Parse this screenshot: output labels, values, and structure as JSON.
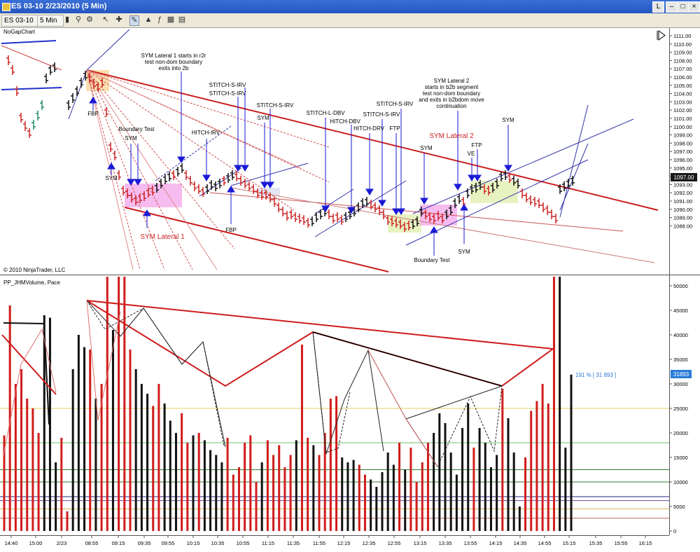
{
  "window": {
    "title": "ES 03-10  2/23/2010 (5 Min)",
    "buttons": [
      "L",
      "–",
      "□",
      "×"
    ]
  },
  "toolbar": {
    "instrument": "ES 03-10",
    "interval": "5 Min"
  },
  "price_panel": {
    "indicator_label": "NoGapChart",
    "copyright": "© 2010 NinjaTrader, LLC",
    "y_ticks": [
      "1111.00",
      "1110.00",
      "1109.00",
      "1108.00",
      "1107.00",
      "1106.00",
      "1105.00",
      "1104.00",
      "1103.00",
      "1102.00",
      "1101.00",
      "1100.00",
      "1099.00",
      "1098.00",
      "1097.00",
      "1096.00",
      "1095.00",
      "1094.00",
      "1093.00",
      "1092.00",
      "1091.00",
      "1090.00",
      "1089.00",
      "1088.00"
    ],
    "last_price": "1097.00",
    "annotations": [
      {
        "text": "SYM Lateral 1 starts in r2r",
        "color": "#000"
      },
      {
        "text": "test non-dom boundary",
        "color": "#000"
      },
      {
        "text": "exits into 2b",
        "color": "#000"
      },
      {
        "text": "FBP",
        "color": "#000"
      },
      {
        "text": "Boundary Test",
        "color": "#000"
      },
      {
        "text": "SYM",
        "color": "#000"
      },
      {
        "text": "SYM",
        "color": "#000"
      },
      {
        "text": "HITCH-IRV",
        "color": "#000"
      },
      {
        "text": "STITCH-S-IRV",
        "color": "#000"
      },
      {
        "text": "STITCH-S-IRV",
        "color": "#000"
      },
      {
        "text": "STITCH-S-IRV",
        "color": "#000"
      },
      {
        "text": "SYM",
        "color": "#000"
      },
      {
        "text": "FBP",
        "color": "#000"
      },
      {
        "text": "SYM Lateral 1",
        "color": "#cc2222"
      },
      {
        "text": "STITCH-L-DBV",
        "color": "#000"
      },
      {
        "text": "HITCH-DBV",
        "color": "#000"
      },
      {
        "text": "HITCH-DRV",
        "color": "#000"
      },
      {
        "text": "STITCH-S-IRV",
        "color": "#000"
      },
      {
        "text": "STITCH-S-IRV",
        "color": "#000"
      },
      {
        "text": "FTP",
        "color": "#000"
      },
      {
        "text": "SYM Lateral 2",
        "color": "#000"
      },
      {
        "text": "starts in b2b segment",
        "color": "#000"
      },
      {
        "text": "test non-dom boundary",
        "color": "#000"
      },
      {
        "text": "and exits in b2bdom move",
        "color": "#000"
      },
      {
        "text": "continuation",
        "color": "#000"
      },
      {
        "text": "SYM Lateral 2",
        "color": "#cc2222"
      },
      {
        "text": "SYM",
        "color": "#000"
      },
      {
        "text": "VE",
        "color": "#000"
      },
      {
        "text": "FTP",
        "color": "#000"
      },
      {
        "text": "SYM",
        "color": "#000"
      },
      {
        "text": "SYM",
        "color": "#000"
      },
      {
        "text": "Boundary Test",
        "color": "#000"
      }
    ]
  },
  "volume_panel": {
    "indicator_label": "PP_JHMVolume, Pace",
    "y_ticks": [
      "50000",
      "45000",
      "40000",
      "35000",
      "30000",
      "25000",
      "20000",
      "15000",
      "10000",
      "5000",
      "0"
    ],
    "pace_text": "191 % [ 31 893 ]",
    "last_value": "31893"
  },
  "x_ticks": [
    "14:40",
    "15:00",
    "2/23",
    "08:55",
    "09:15",
    "09:35",
    "09:55",
    "10:15",
    "10:35",
    "10:55",
    "11:15",
    "11:35",
    "11:55",
    "12:15",
    "12:35",
    "12:55",
    "13:15",
    "13:35",
    "13:55",
    "14:15",
    "14:35",
    "14:55",
    "15:15",
    "15:35",
    "15:55",
    "16:15"
  ],
  "chart_data": {
    "type": "bar",
    "price_range": [
      1087.5,
      1111.5
    ],
    "volume_range": [
      0,
      52000
    ],
    "volume_series": {
      "name": "PP_JHMVolume",
      "values": [
        {
          "v": 19500,
          "c": "red"
        },
        {
          "v": 46000,
          "c": "red"
        },
        {
          "v": 30000,
          "c": "red"
        },
        {
          "v": 33000,
          "c": "red"
        },
        {
          "v": 27000,
          "c": "red"
        },
        {
          "v": 25000,
          "c": "red"
        },
        {
          "v": 20000,
          "c": "red"
        },
        {
          "v": 44000,
          "c": "black"
        },
        {
          "v": 43500,
          "c": "black"
        },
        {
          "v": 14000,
          "c": "black"
        },
        {
          "v": 19000,
          "c": "red"
        },
        {
          "v": 4000,
          "c": "red"
        },
        {
          "v": 33000,
          "c": "black"
        },
        {
          "v": 40000,
          "c": "black"
        },
        {
          "v": 37500,
          "c": "black"
        },
        {
          "v": 37000,
          "c": "red"
        },
        {
          "v": 27000,
          "c": "black"
        },
        {
          "v": 30000,
          "c": "red"
        },
        {
          "v": 52000,
          "c": "red"
        },
        {
          "v": 41000,
          "c": "black"
        },
        {
          "v": 52000,
          "c": "red"
        },
        {
          "v": 52000,
          "c": "red"
        },
        {
          "v": 37000,
          "c": "red"
        },
        {
          "v": 33000,
          "c": "black"
        },
        {
          "v": 30000,
          "c": "black"
        },
        {
          "v": 28000,
          "c": "black"
        },
        {
          "v": 25500,
          "c": "red"
        },
        {
          "v": 30000,
          "c": "red"
        },
        {
          "v": 26000,
          "c": "black"
        },
        {
          "v": 22500,
          "c": "black"
        },
        {
          "v": 20000,
          "c": "black"
        },
        {
          "v": 24000,
          "c": "red"
        },
        {
          "v": 18000,
          "c": "red"
        },
        {
          "v": 19500,
          "c": "black"
        },
        {
          "v": 20000,
          "c": "red"
        },
        {
          "v": 18500,
          "c": "black"
        },
        {
          "v": 16500,
          "c": "black"
        },
        {
          "v": 15500,
          "c": "black"
        },
        {
          "v": 14000,
          "c": "black"
        },
        {
          "v": 19000,
          "c": "red"
        },
        {
          "v": 11500,
          "c": "red"
        },
        {
          "v": 13000,
          "c": "red"
        },
        {
          "v": 18000,
          "c": "red"
        },
        {
          "v": 19500,
          "c": "red"
        },
        {
          "v": 10000,
          "c": "red"
        },
        {
          "v": 14000,
          "c": "black"
        },
        {
          "v": 18500,
          "c": "red"
        },
        {
          "v": 15500,
          "c": "red"
        },
        {
          "v": 17500,
          "c": "red"
        },
        {
          "v": 13000,
          "c": "red"
        },
        {
          "v": 15500,
          "c": "red"
        },
        {
          "v": 18500,
          "c": "black"
        },
        {
          "v": 38000,
          "c": "red"
        },
        {
          "v": 19000,
          "c": "red"
        },
        {
          "v": 17500,
          "c": "black"
        },
        {
          "v": 15500,
          "c": "red"
        },
        {
          "v": 20000,
          "c": "red"
        },
        {
          "v": 27000,
          "c": "red"
        },
        {
          "v": 27500,
          "c": "red"
        },
        {
          "v": 15000,
          "c": "black"
        },
        {
          "v": 14000,
          "c": "black"
        },
        {
          "v": 14500,
          "c": "black"
        },
        {
          "v": 13500,
          "c": "red"
        },
        {
          "v": 11500,
          "c": "red"
        },
        {
          "v": 10500,
          "c": "black"
        },
        {
          "v": 9000,
          "c": "black"
        },
        {
          "v": 12000,
          "c": "black"
        },
        {
          "v": 16000,
          "c": "black"
        },
        {
          "v": 13500,
          "c": "black"
        },
        {
          "v": 18000,
          "c": "red"
        },
        {
          "v": 12500,
          "c": "black"
        },
        {
          "v": 17000,
          "c": "red"
        },
        {
          "v": 10000,
          "c": "red"
        },
        {
          "v": 14000,
          "c": "red"
        },
        {
          "v": 18000,
          "c": "red"
        },
        {
          "v": 20000,
          "c": "black"
        },
        {
          "v": 24000,
          "c": "black"
        },
        {
          "v": 22000,
          "c": "black"
        },
        {
          "v": 16000,
          "c": "black"
        },
        {
          "v": 11500,
          "c": "black"
        },
        {
          "v": 21000,
          "c": "black"
        },
        {
          "v": 26000,
          "c": "black"
        },
        {
          "v": 17000,
          "c": "red"
        },
        {
          "v": 21000,
          "c": "black"
        },
        {
          "v": 18000,
          "c": "black"
        },
        {
          "v": 13000,
          "c": "black"
        },
        {
          "v": 15500,
          "c": "black"
        },
        {
          "v": 29000,
          "c": "red"
        },
        {
          "v": 23000,
          "c": "black"
        },
        {
          "v": 16000,
          "c": "black"
        },
        {
          "v": 5000,
          "c": "black"
        },
        {
          "v": 15000,
          "c": "red"
        },
        {
          "v": 24500,
          "c": "red"
        },
        {
          "v": 26500,
          "c": "red"
        },
        {
          "v": 30000,
          "c": "red"
        },
        {
          "v": 26000,
          "c": "red"
        },
        {
          "v": 52000,
          "c": "red"
        },
        {
          "v": 52000,
          "c": "black"
        },
        {
          "v": 17000,
          "c": "black"
        },
        {
          "v": 31893,
          "c": "black"
        }
      ]
    }
  }
}
